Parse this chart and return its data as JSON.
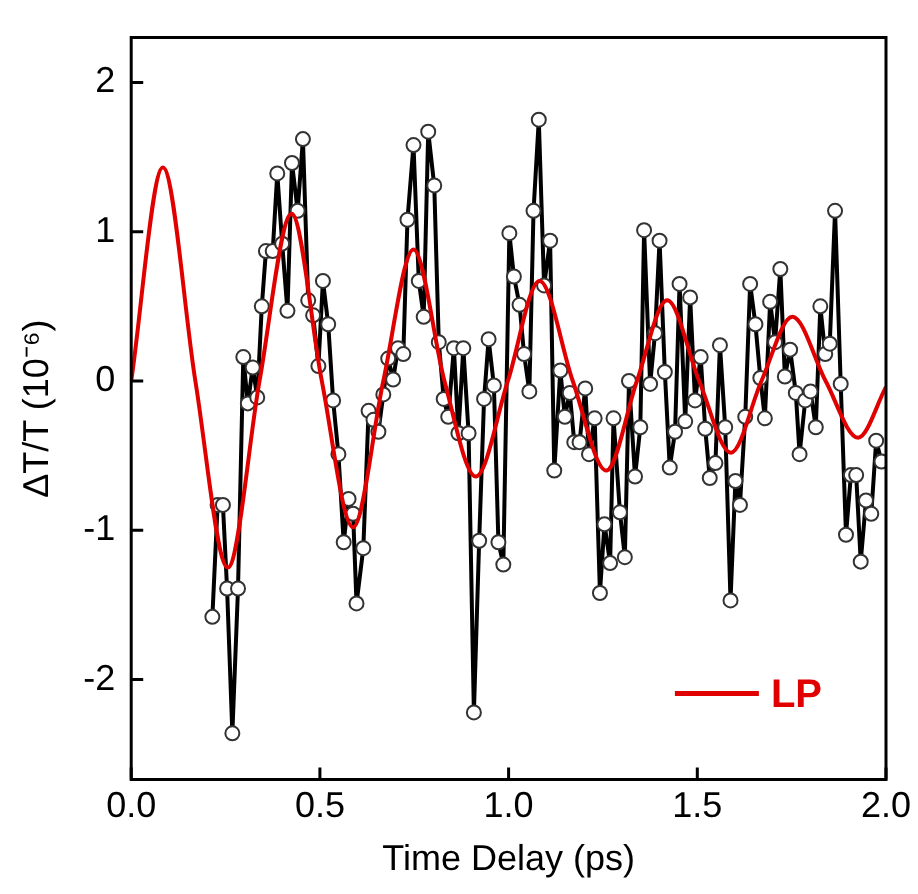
{
  "chart_data": {
    "type": "line",
    "xlabel": "Time Delay (ps)",
    "ylabel": "ΔT/T (10⁻⁶)",
    "xlim": [
      0,
      2
    ],
    "xticks": [
      {
        "value": 0,
        "label": "0.0"
      },
      {
        "value": 0.5,
        "label": "0.5"
      },
      {
        "value": 1,
        "label": "1.0"
      },
      {
        "value": 1.5,
        "label": "1.5"
      },
      {
        "value": 2,
        "label": "2.0"
      }
    ],
    "ylim": [
      -2.67,
      2.3
    ],
    "yticks": [
      -2,
      -1,
      0,
      1,
      2
    ],
    "grid": false,
    "legend": "bottom right",
    "line_style": "solid",
    "series": [
      {
        "color": "#000000",
        "marker": "circle",
        "x": [
          0.215,
          0.229,
          0.243,
          0.254,
          0.268,
          0.283,
          0.297,
          0.309,
          0.322,
          0.334,
          0.346,
          0.357,
          0.375,
          0.387,
          0.4,
          0.414,
          0.426,
          0.441,
          0.455,
          0.469,
          0.482,
          0.496,
          0.508,
          0.522,
          0.535,
          0.549,
          0.563,
          0.576,
          0.588,
          0.597,
          0.615,
          0.629,
          0.642,
          0.655,
          0.668,
          0.681,
          0.694,
          0.707,
          0.721,
          0.732,
          0.748,
          0.762,
          0.775,
          0.787,
          0.803,
          0.815,
          0.828,
          0.84,
          0.855,
          0.867,
          0.88,
          0.894,
          0.908,
          0.922,
          0.935,
          0.947,
          0.961,
          0.973,
          0.986,
          1.002,
          1.014,
          1.029,
          1.041,
          1.055,
          1.066,
          1.08,
          1.094,
          1.11,
          1.121,
          1.137,
          1.149,
          1.162,
          1.174,
          1.188,
          1.203,
          1.213,
          1.228,
          1.242,
          1.254,
          1.269,
          1.278,
          1.295,
          1.308,
          1.319,
          1.335,
          1.349,
          1.359,
          1.375,
          1.388,
          1.4,
          1.414,
          1.427,
          1.441,
          1.453,
          1.468,
          1.481,
          1.494,
          1.509,
          1.521,
          1.533,
          1.548,
          1.56,
          1.574,
          1.588,
          1.601,
          1.613,
          1.627,
          1.64,
          1.654,
          1.667,
          1.679,
          1.693,
          1.706,
          1.72,
          1.732,
          1.746,
          1.761,
          1.771,
          1.786,
          1.8,
          1.814,
          1.826,
          1.839,
          1.851,
          1.865,
          1.88,
          1.894,
          1.907,
          1.921,
          1.933,
          1.947,
          1.961,
          1.974,
          1.988
        ],
        "values": [
          -1.58,
          -0.83,
          -0.83,
          -1.39,
          -2.36,
          -1.39,
          0.16,
          -0.15,
          0.09,
          -0.11,
          0.5,
          0.87,
          0.87,
          1.39,
          0.92,
          0.47,
          1.46,
          1.14,
          1.62,
          0.54,
          0.44,
          0.1,
          0.67,
          0.38,
          -0.13,
          -0.49,
          -1.08,
          -0.79,
          -0.89,
          -1.49,
          -1.12,
          -0.2,
          -0.26,
          -0.34,
          -0.09,
          0.15,
          0.01,
          0.22,
          0.18,
          1.08,
          1.58,
          0.67,
          0.43,
          1.67,
          1.31,
          0.26,
          -0.12,
          -0.24,
          0.22,
          -0.35,
          0.22,
          -0.35,
          -2.22,
          -1.07,
          -0.12,
          0.28,
          -0.03,
          -1.08,
          -1.23,
          0.99,
          0.7,
          0.51,
          0.18,
          -0.07,
          1.14,
          1.75,
          0.64,
          0.94,
          -0.6,
          0.07,
          -0.24,
          -0.08,
          -0.41,
          -0.41,
          -0.05,
          -0.49,
          -0.25,
          -1.42,
          -0.96,
          -1.22,
          -0.25,
          -0.88,
          -1.18,
          0,
          -0.64,
          -0.31,
          1.01,
          -0.02,
          0.32,
          0.94,
          0.06,
          -0.58,
          -0.34,
          0.65,
          -0.27,
          0.56,
          -0.13,
          0.16,
          -0.32,
          -0.65,
          -0.55,
          0.24,
          -0.31,
          -1.47,
          -0.67,
          -0.83,
          -0.24,
          0.65,
          0.38,
          0.02,
          -0.25,
          0.53,
          0.26,
          0.75,
          0.03,
          0.21,
          -0.08,
          -0.49,
          -0.13,
          -0.07,
          -0.31,
          0.5,
          0.18,
          0.25,
          1.14,
          -0.02,
          -1.03,
          -0.63,
          -0.63,
          -1.21,
          -0.8,
          -0.89,
          -0.4,
          -0.54
        ]
      },
      {
        "name": "LP",
        "color": "#e00000",
        "marker": "none",
        "x": [
          0,
          0.084,
          0.17,
          0.256,
          0.34,
          0.425,
          0.505,
          0.588,
          0.668,
          0.748,
          0.83,
          0.913,
          0.998,
          1.082,
          1.17,
          1.259,
          1.34,
          1.42,
          1.505,
          1.589,
          1.67,
          1.752,
          1.84,
          1.926,
          2.0
        ],
        "values": [
          0,
          1.43,
          0,
          -1.25,
          0,
          1.12,
          0,
          -0.98,
          0,
          0.88,
          0,
          -0.64,
          0,
          0.67,
          0,
          -0.6,
          0,
          0.54,
          0,
          -0.48,
          0,
          0.43,
          0,
          -0.38,
          -0.04
        ]
      }
    ]
  }
}
